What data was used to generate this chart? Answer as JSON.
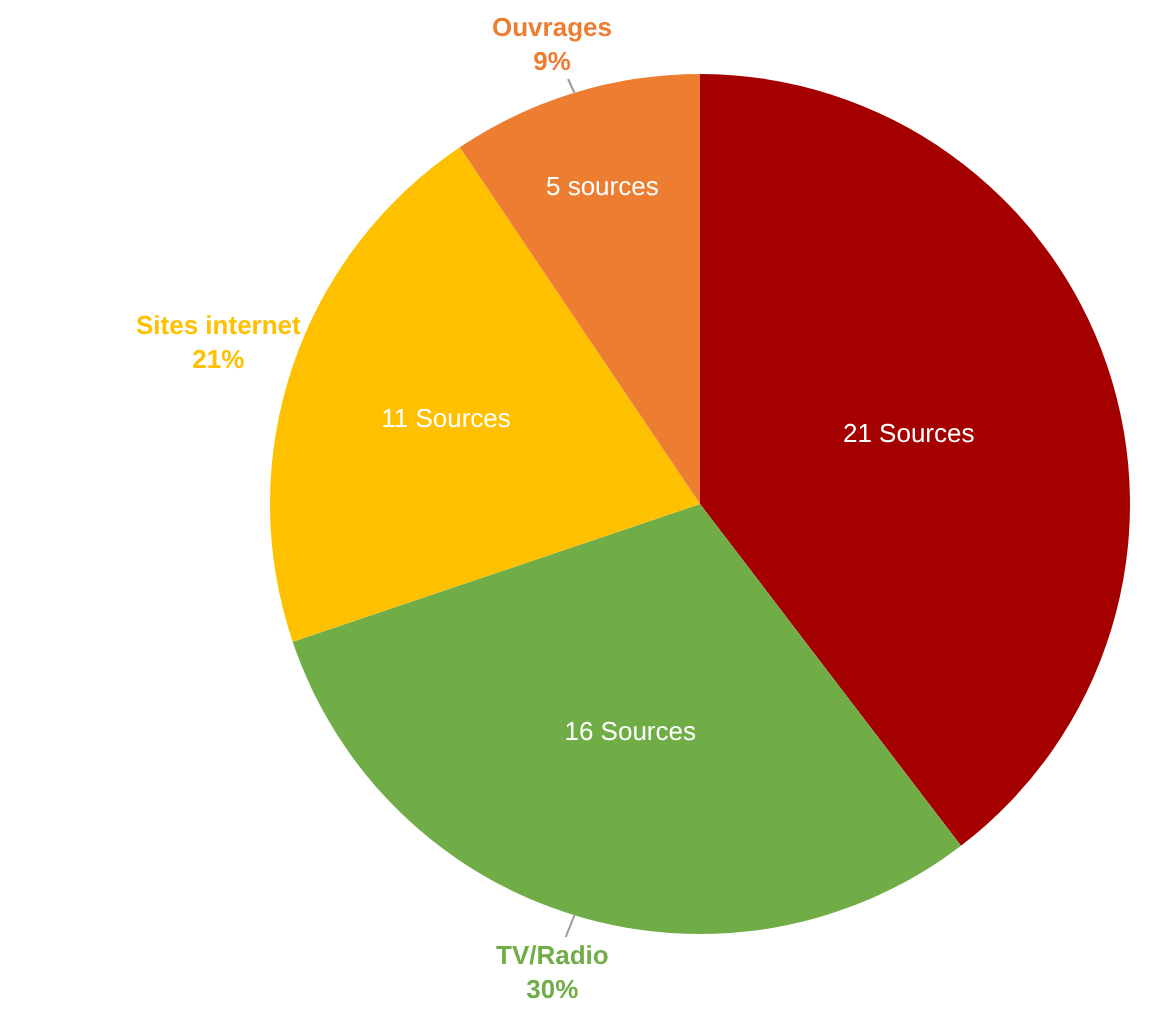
{
  "chart_data": {
    "type": "pie",
    "categories": [
      null,
      "TV/Radio",
      "Sites internet",
      "Ouvrages"
    ],
    "values": [
      21,
      16,
      11,
      5
    ],
    "colors": [
      "#a50000",
      "#70ad47",
      "#ffc000",
      "#ed7d31"
    ],
    "value_labels": [
      "21 Sources",
      "16 Sources",
      "11 Sources",
      "5 sources"
    ],
    "annotations": [
      "30%",
      "21%",
      "9%"
    ],
    "legend": false
  }
}
